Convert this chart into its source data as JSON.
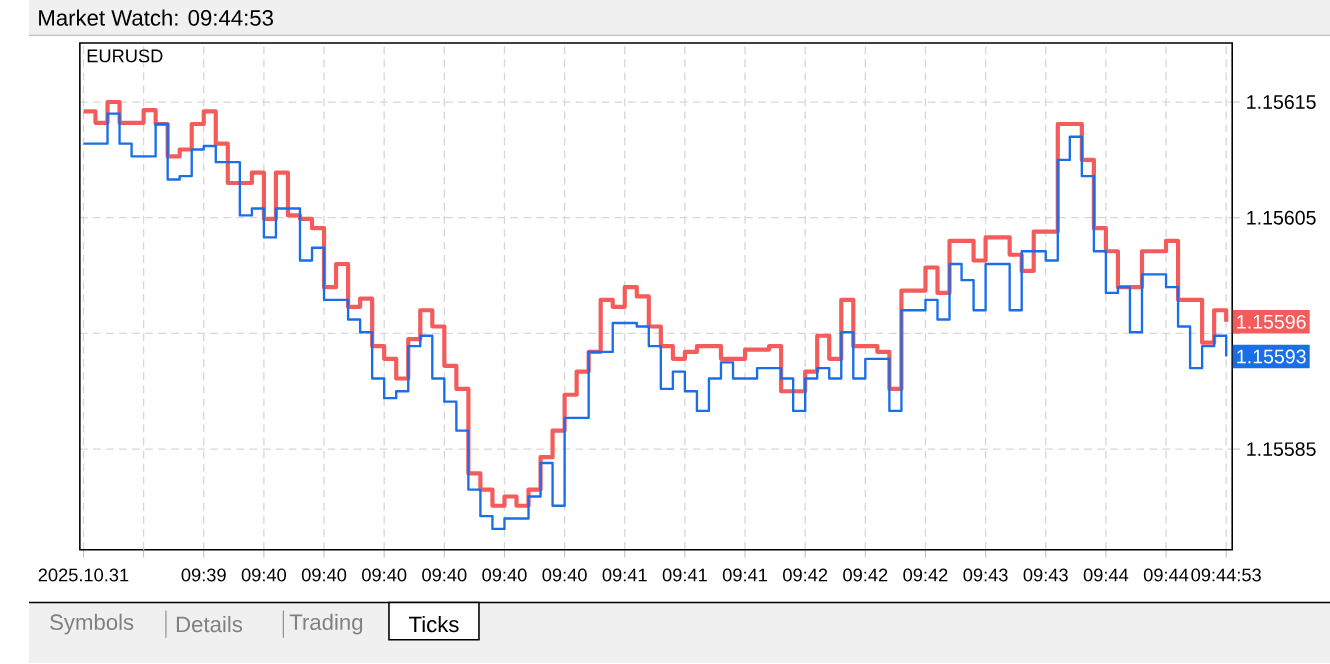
{
  "chart_data": {
    "type": "step",
    "title": "Market Watch: 09:44:53",
    "subtitle": "EURUSD",
    "categories": [
      "2025.10.31",
      null,
      null,
      null,
      null,
      null,
      null,
      null,
      null,
      null,
      "09:39",
      null,
      null,
      null,
      null,
      "09:40",
      null,
      null,
      null,
      null,
      "09:40",
      null,
      null,
      null,
      null,
      "09:40",
      null,
      null,
      null,
      null,
      "09:40",
      null,
      null,
      null,
      null,
      "09:40",
      null,
      null,
      null,
      null,
      "09:40",
      null,
      null,
      null,
      null,
      "09:41",
      null,
      null,
      null,
      null,
      "09:41",
      null,
      null,
      null,
      null,
      "09:41",
      null,
      null,
      null,
      null,
      "09:42",
      null,
      null,
      null,
      null,
      "09:42",
      null,
      null,
      null,
      null,
      "09:42",
      null,
      null,
      null,
      null,
      "09:43",
      null,
      null,
      null,
      null,
      "09:43",
      null,
      null,
      null,
      null,
      "09:44",
      null,
      null,
      null,
      null,
      "09:44",
      null,
      null,
      null,
      null,
      "09:44:53"
    ],
    "ylim": [
      1.155763,
      1.156201
    ],
    "yticks": [
      1.15585,
      {
        "value": 1.15595,
        "label": null
      },
      1.15605,
      1.15615
    ],
    "grid": true,
    "series": [
      {
        "color": "#f45b5b",
        "values": [
          1.156142,
          1.156132,
          1.15615,
          1.156132,
          1.156132,
          1.156143,
          1.156131,
          1.156103,
          1.156109,
          1.156131,
          1.156142,
          1.156114,
          1.15608,
          1.15608,
          1.156089,
          1.156049,
          1.156089,
          1.156052,
          1.156049,
          1.156041,
          1.15599,
          1.15601,
          1.155973,
          1.15598,
          1.155939,
          1.155928,
          1.155911,
          1.155945,
          1.15597,
          1.155956,
          1.155922,
          1.155902,
          1.155829,
          1.155815,
          1.155801,
          1.155809,
          1.155801,
          1.155815,
          1.155843,
          1.155866,
          1.155897,
          1.155917,
          1.155934,
          1.155979,
          1.155973,
          1.15599,
          1.155982,
          1.155956,
          1.155939,
          1.155928,
          1.155934,
          1.155939,
          1.155939,
          1.155928,
          1.155928,
          1.155936,
          1.155936,
          1.155939,
          1.1559,
          1.1559,
          1.155917,
          1.155948,
          1.155928,
          1.155979,
          1.155939,
          1.155939,
          1.155934,
          1.155902,
          1.155987,
          1.155987,
          1.156007,
          1.155985,
          1.15603,
          1.15603,
          1.156013,
          1.156033,
          1.156033,
          1.156018,
          1.156004,
          1.156038,
          1.156038,
          1.156131,
          1.156131,
          1.1561,
          1.156041,
          1.156021,
          1.15599,
          1.15599,
          1.156021,
          1.156021,
          1.15603,
          1.155979,
          1.155979,
          1.155942,
          1.15597,
          1.15596
        ]
      },
      {
        "color": "#1a6fe8",
        "values": [
          1.156114,
          1.156114,
          1.15614,
          1.156114,
          1.156103,
          1.156103,
          1.156131,
          1.156083,
          1.156086,
          1.156109,
          1.156112,
          1.156098,
          1.156098,
          1.156052,
          1.156058,
          1.156033,
          1.156058,
          1.156058,
          1.156013,
          1.156024,
          1.155979,
          1.155979,
          1.155962,
          1.155951,
          1.155911,
          1.155894,
          1.1559,
          1.155939,
          1.155948,
          1.155911,
          1.155891,
          1.155866,
          1.155815,
          1.155792,
          1.155781,
          1.15579,
          1.15579,
          1.155809,
          1.155838,
          1.155801,
          1.155877,
          1.155877,
          1.155934,
          1.155934,
          1.155959,
          1.155959,
          1.155956,
          1.155939,
          1.155902,
          1.155917,
          1.1559,
          1.155883,
          1.155911,
          1.155925,
          1.155911,
          1.155911,
          1.15592,
          1.15592,
          1.155911,
          1.155883,
          1.155911,
          1.15592,
          1.155911,
          1.155951,
          1.155911,
          1.155928,
          1.155928,
          1.155883,
          1.15597,
          1.15597,
          1.155979,
          1.155962,
          1.15601,
          1.155996,
          1.15597,
          1.15601,
          1.15601,
          1.15597,
          1.156021,
          1.156021,
          1.156013,
          1.1561,
          1.15612,
          1.156086,
          1.156021,
          1.155985,
          1.15599,
          1.155951,
          1.156001,
          1.156001,
          1.15599,
          1.155956,
          1.15592,
          1.155939,
          1.155948,
          1.15593
        ]
      }
    ],
    "annotations": [
      {
        "text": "1.15596",
        "y": 1.15596
      },
      {
        "text": "1.15593",
        "y": 1.15593
      },
      "Symbols",
      "Details",
      "Trading",
      "Ticks"
    ]
  }
}
